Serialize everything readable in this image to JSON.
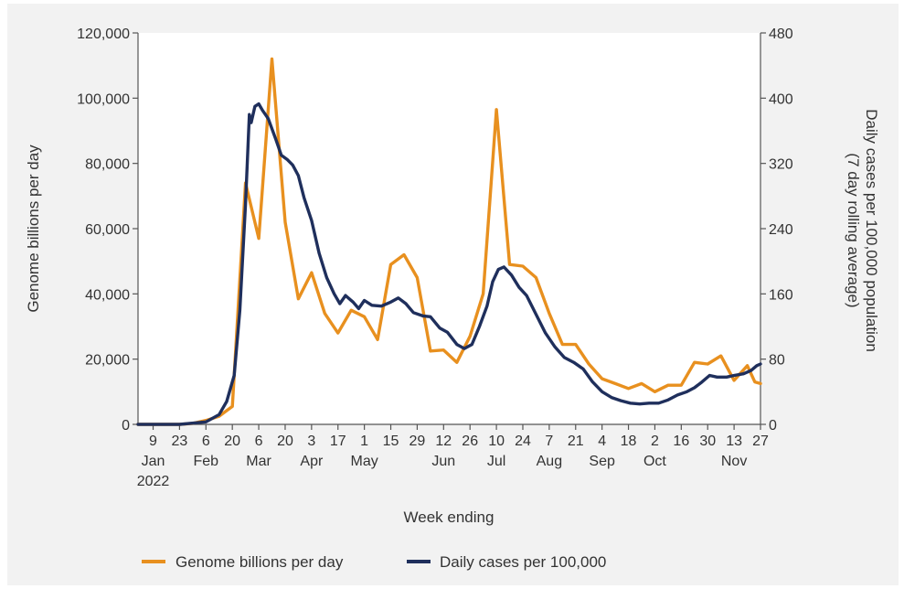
{
  "chart_data": {
    "type": "line",
    "xlabel": "Week ending",
    "ylabel_left": "Genome billions per day",
    "ylabel_right": [
      "Daily cases per 100,000 population",
      "(7 day rolling average)"
    ],
    "ylim_left": [
      0,
      120000
    ],
    "ylim_right": [
      0,
      480
    ],
    "yticks_left": [
      "0",
      "20,000",
      "40,000",
      "60,000",
      "80,000",
      "100,000",
      "120,000"
    ],
    "yticks_right": [
      "0",
      "80",
      "160",
      "240",
      "320",
      "400",
      "480"
    ],
    "x_ticks": [
      {
        "date": "2022-01-09",
        "day": "9"
      },
      {
        "date": "2022-01-23",
        "day": "23"
      },
      {
        "date": "2022-02-06",
        "day": "6"
      },
      {
        "date": "2022-02-20",
        "day": "20"
      },
      {
        "date": "2022-03-06",
        "day": "6"
      },
      {
        "date": "2022-03-20",
        "day": "20"
      },
      {
        "date": "2022-04-03",
        "day": "3"
      },
      {
        "date": "2022-04-17",
        "day": "17"
      },
      {
        "date": "2022-05-01",
        "day": "1"
      },
      {
        "date": "2022-05-15",
        "day": "15"
      },
      {
        "date": "2022-05-29",
        "day": "29"
      },
      {
        "date": "2022-06-12",
        "day": "12"
      },
      {
        "date": "2022-06-26",
        "day": "26"
      },
      {
        "date": "2022-07-10",
        "day": "10"
      },
      {
        "date": "2022-07-24",
        "day": "24"
      },
      {
        "date": "2022-08-07",
        "day": "7"
      },
      {
        "date": "2022-08-21",
        "day": "21"
      },
      {
        "date": "2022-09-04",
        "day": "4"
      },
      {
        "date": "2022-09-18",
        "day": "18"
      },
      {
        "date": "2022-10-02",
        "day": "2"
      },
      {
        "date": "2022-10-16",
        "day": "16"
      },
      {
        "date": "2022-10-30",
        "day": "30"
      },
      {
        "date": "2022-11-13",
        "day": "13"
      },
      {
        "date": "2022-11-27",
        "day": "27"
      }
    ],
    "month_labels": [
      {
        "date": "2022-01-09",
        "label": "Jan"
      },
      {
        "date": "2022-02-06",
        "label": "Feb"
      },
      {
        "date": "2022-03-06",
        "label": "Mar"
      },
      {
        "date": "2022-04-03",
        "label": "Apr"
      },
      {
        "date": "2022-05-01",
        "label": "May"
      },
      {
        "date": "2022-06-12",
        "label": "Jun"
      },
      {
        "date": "2022-07-10",
        "label": "Jul"
      },
      {
        "date": "2022-08-07",
        "label": "Aug"
      },
      {
        "date": "2022-09-04",
        "label": "Sep"
      },
      {
        "date": "2022-10-02",
        "label": "Oct"
      },
      {
        "date": "2022-11-13",
        "label": "Nov"
      }
    ],
    "year_label": {
      "date": "2022-01-09",
      "label": "2022"
    },
    "x_range": [
      "2022-01-01",
      "2022-11-27"
    ],
    "series": [
      {
        "name": "Genome billions per day",
        "axis": "left",
        "color": "#e8901f",
        "points": [
          [
            "2022-01-01",
            0
          ],
          [
            "2022-01-09",
            0
          ],
          [
            "2022-01-16",
            0
          ],
          [
            "2022-01-23",
            0
          ],
          [
            "2022-01-30",
            300
          ],
          [
            "2022-02-06",
            1200
          ],
          [
            "2022-02-13",
            2500
          ],
          [
            "2022-02-20",
            5500
          ],
          [
            "2022-02-27",
            74000
          ],
          [
            "2022-03-06",
            57000
          ],
          [
            "2022-03-13",
            112000
          ],
          [
            "2022-03-20",
            62000
          ],
          [
            "2022-03-27",
            38500
          ],
          [
            "2022-04-03",
            46500
          ],
          [
            "2022-04-10",
            34000
          ],
          [
            "2022-04-17",
            28000
          ],
          [
            "2022-04-24",
            35000
          ],
          [
            "2022-05-01",
            33000
          ],
          [
            "2022-05-08",
            26000
          ],
          [
            "2022-05-15",
            49000
          ],
          [
            "2022-05-22",
            52000
          ],
          [
            "2022-05-29",
            45000
          ],
          [
            "2022-06-05",
            22500
          ],
          [
            "2022-06-12",
            22800
          ],
          [
            "2022-06-19",
            19000
          ],
          [
            "2022-06-26",
            27000
          ],
          [
            "2022-07-03",
            40000
          ],
          [
            "2022-07-10",
            96500
          ],
          [
            "2022-07-17",
            49000
          ],
          [
            "2022-07-24",
            48500
          ],
          [
            "2022-07-31",
            45000
          ],
          [
            "2022-08-07",
            34000
          ],
          [
            "2022-08-14",
            24500
          ],
          [
            "2022-08-21",
            24500
          ],
          [
            "2022-08-28",
            18500
          ],
          [
            "2022-09-04",
            14000
          ],
          [
            "2022-09-11",
            12500
          ],
          [
            "2022-09-18",
            11000
          ],
          [
            "2022-09-25",
            12500
          ],
          [
            "2022-10-02",
            10000
          ],
          [
            "2022-10-09",
            12000
          ],
          [
            "2022-10-16",
            12000
          ],
          [
            "2022-10-23",
            19000
          ],
          [
            "2022-10-30",
            18500
          ],
          [
            "2022-11-06",
            21000
          ],
          [
            "2022-11-13",
            13500
          ],
          [
            "2022-11-20",
            18000
          ],
          [
            "2022-11-24",
            13000
          ],
          [
            "2022-11-27",
            12500
          ]
        ]
      },
      {
        "name": "Daily cases per 100,000",
        "axis": "right",
        "color": "#1f2f5c",
        "points": [
          [
            "2022-01-01",
            0
          ],
          [
            "2022-01-23",
            0
          ],
          [
            "2022-02-06",
            3
          ],
          [
            "2022-02-13",
            12
          ],
          [
            "2022-02-17",
            28
          ],
          [
            "2022-02-21",
            60
          ],
          [
            "2022-02-24",
            140
          ],
          [
            "2022-02-27",
            270
          ],
          [
            "2022-03-01",
            380
          ],
          [
            "2022-03-02",
            370
          ],
          [
            "2022-03-04",
            390
          ],
          [
            "2022-03-06",
            393
          ],
          [
            "2022-03-08",
            385
          ],
          [
            "2022-03-11",
            375
          ],
          [
            "2022-03-15",
            350
          ],
          [
            "2022-03-18",
            330
          ],
          [
            "2022-03-21",
            325
          ],
          [
            "2022-03-24",
            318
          ],
          [
            "2022-03-27",
            305
          ],
          [
            "2022-03-30",
            278
          ],
          [
            "2022-04-03",
            250
          ],
          [
            "2022-04-07",
            210
          ],
          [
            "2022-04-11",
            180
          ],
          [
            "2022-04-15",
            160
          ],
          [
            "2022-04-18",
            148
          ],
          [
            "2022-04-21",
            158
          ],
          [
            "2022-04-25",
            150
          ],
          [
            "2022-04-28",
            142
          ],
          [
            "2022-05-01",
            152
          ],
          [
            "2022-05-05",
            146
          ],
          [
            "2022-05-10",
            145
          ],
          [
            "2022-05-15",
            150
          ],
          [
            "2022-05-19",
            155
          ],
          [
            "2022-05-23",
            148
          ],
          [
            "2022-05-27",
            137
          ],
          [
            "2022-06-01",
            133
          ],
          [
            "2022-06-05",
            132
          ],
          [
            "2022-06-10",
            118
          ],
          [
            "2022-06-14",
            113
          ],
          [
            "2022-06-19",
            98
          ],
          [
            "2022-06-23",
            93
          ],
          [
            "2022-06-27",
            98
          ],
          [
            "2022-07-01",
            120
          ],
          [
            "2022-07-05",
            145
          ],
          [
            "2022-07-08",
            175
          ],
          [
            "2022-07-11",
            190
          ],
          [
            "2022-07-14",
            193
          ],
          [
            "2022-07-18",
            183
          ],
          [
            "2022-07-22",
            168
          ],
          [
            "2022-07-26",
            158
          ],
          [
            "2022-07-31",
            135
          ],
          [
            "2022-08-05",
            112
          ],
          [
            "2022-08-10",
            95
          ],
          [
            "2022-08-15",
            82
          ],
          [
            "2022-08-20",
            76
          ],
          [
            "2022-08-25",
            68
          ],
          [
            "2022-08-30",
            52
          ],
          [
            "2022-09-04",
            40
          ],
          [
            "2022-09-09",
            33
          ],
          [
            "2022-09-14",
            29
          ],
          [
            "2022-09-19",
            26
          ],
          [
            "2022-09-24",
            25
          ],
          [
            "2022-09-29",
            26
          ],
          [
            "2022-10-04",
            26
          ],
          [
            "2022-10-09",
            30
          ],
          [
            "2022-10-14",
            36
          ],
          [
            "2022-10-19",
            40
          ],
          [
            "2022-10-23",
            45
          ],
          [
            "2022-10-27",
            52
          ],
          [
            "2022-10-31",
            60
          ],
          [
            "2022-11-04",
            58
          ],
          [
            "2022-11-09",
            58
          ],
          [
            "2022-11-13",
            60
          ],
          [
            "2022-11-18",
            62
          ],
          [
            "2022-11-22",
            66
          ],
          [
            "2022-11-25",
            72
          ],
          [
            "2022-11-27",
            74
          ]
        ]
      }
    ],
    "legend": {
      "placement": "bottom"
    }
  }
}
